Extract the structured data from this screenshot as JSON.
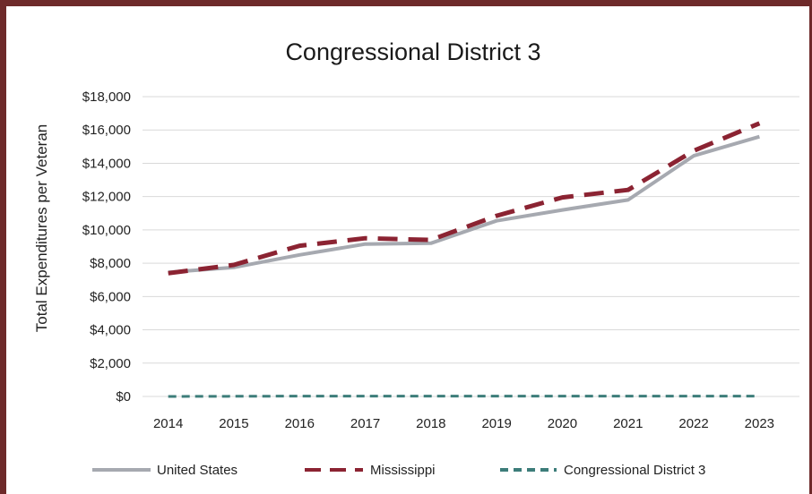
{
  "chart_data": {
    "type": "line",
    "title": "Congressional District 3",
    "ylabel": "Total Expenditures per Veteran",
    "xlabel": "",
    "x": [
      "2014",
      "2015",
      "2016",
      "2017",
      "2018",
      "2019",
      "2020",
      "2021",
      "2022",
      "2023"
    ],
    "ylim": [
      0,
      18000
    ],
    "ytick_labels": [
      "$0",
      "$2,000",
      "$4,000",
      "$6,000",
      "$8,000",
      "$10,000",
      "$12,000",
      "$14,000",
      "$16,000",
      "$18,000"
    ],
    "grid": true,
    "legend_position": "bottom",
    "series": [
      {
        "name": "United States",
        "color": "#a6a9b0",
        "style": "solid",
        "values": [
          7450,
          7750,
          8500,
          9150,
          9200,
          10550,
          11200,
          11800,
          14450,
          15600
        ]
      },
      {
        "name": "Mississippi",
        "color": "#8b2332",
        "style": "dashed",
        "values": [
          7400,
          7900,
          9050,
          9500,
          9400,
          10850,
          11950,
          12400,
          14750,
          16400
        ]
      },
      {
        "name": "Congressional District 3",
        "color": "#3d7d7a",
        "style": "dashed",
        "values": [
          0,
          10,
          20,
          20,
          20,
          20,
          20,
          20,
          20,
          20
        ]
      }
    ]
  }
}
